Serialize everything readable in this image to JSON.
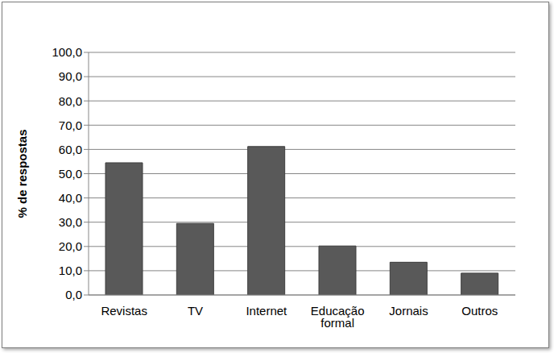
{
  "chart_data": {
    "type": "bar",
    "y_label": "% de respostas",
    "categories": [
      "Revistas",
      "TV",
      "Internet",
      "Educação formal",
      "Jornais",
      "Outros"
    ],
    "values": [
      54.5,
      29.5,
      61.2,
      20.2,
      13.5,
      9.0
    ],
    "color": "#595959",
    "ylim": [
      0,
      100
    ],
    "yticks": [
      {
        "value": 0,
        "label": "0,0"
      },
      {
        "value": 10,
        "label": "10,0"
      },
      {
        "value": 20,
        "label": "20,0"
      },
      {
        "value": 30,
        "label": "30,0"
      },
      {
        "value": 40,
        "label": "40,0"
      },
      {
        "value": 50,
        "label": "50,0"
      },
      {
        "value": 60,
        "label": "60,0"
      },
      {
        "value": 70,
        "label": "70,0"
      },
      {
        "value": 80,
        "label": "80,0"
      },
      {
        "value": 90,
        "label": "90,0"
      },
      {
        "value": 100,
        "label": "100,0"
      }
    ],
    "grid": true
  }
}
